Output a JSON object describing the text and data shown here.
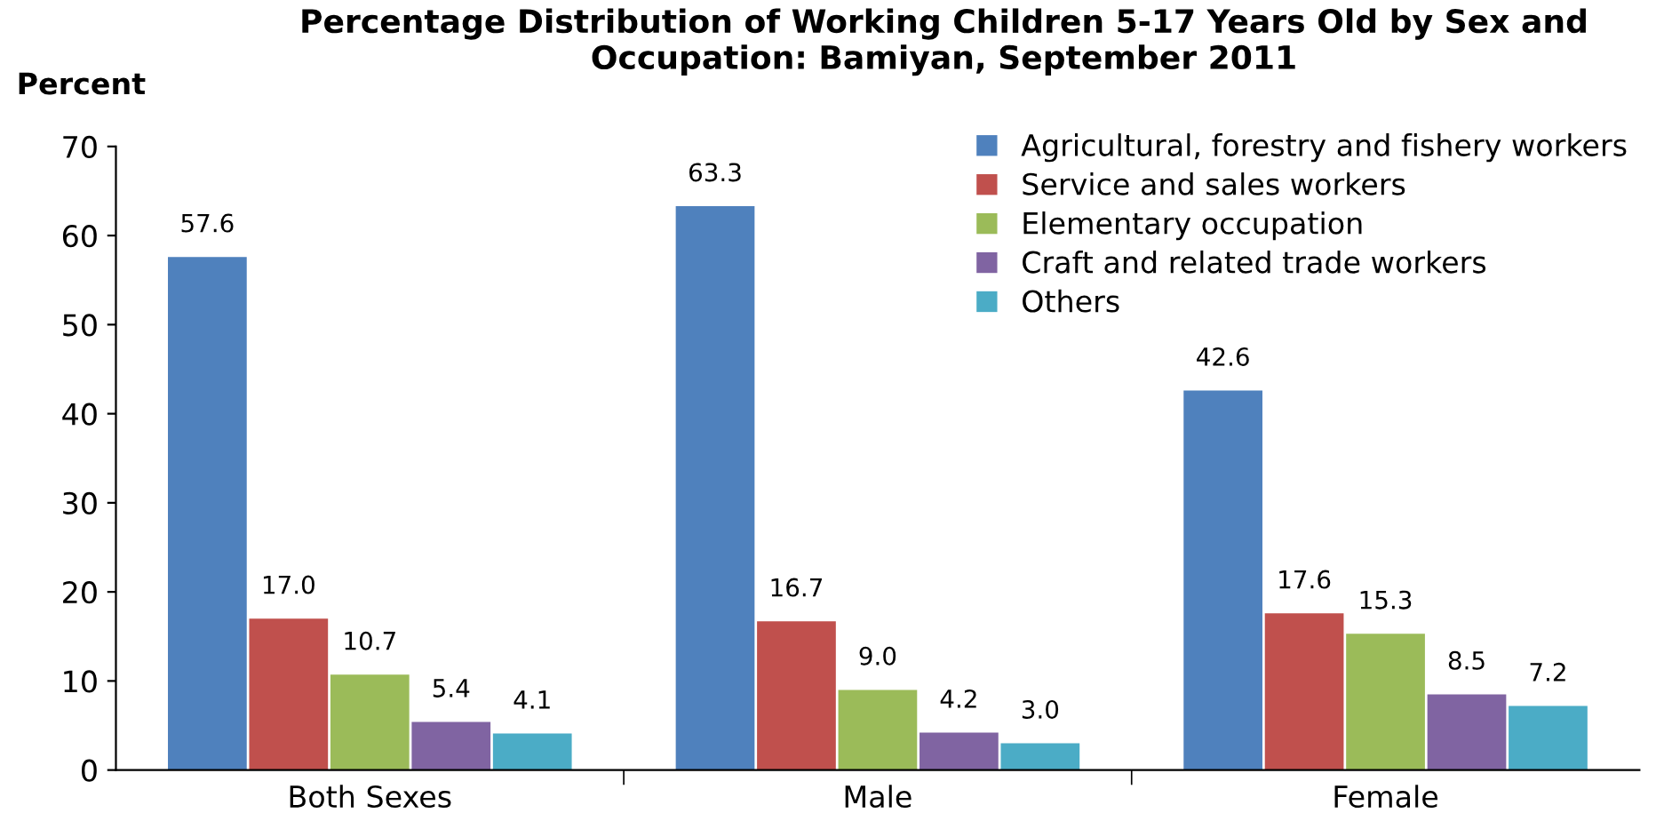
{
  "chart_data": {
    "type": "bar",
    "title": "Percentage Distribution of Working Children 5-17 Years Old by Sex and\nOccupation: Bamiyan, September 2011",
    "ylabel": "Percent",
    "categories": [
      "Both Sexes",
      "Male",
      "Female"
    ],
    "series": [
      {
        "name": "Agricultural, forestry and fishery workers",
        "color": "#4f81bd",
        "values": [
          57.6,
          63.3,
          42.6
        ],
        "value_labels": [
          "57.6",
          "63.3",
          "42.6"
        ]
      },
      {
        "name": "Service and sales workers",
        "color": "#c0504d",
        "values": [
          17.0,
          16.7,
          17.6
        ],
        "value_labels": [
          "17.0",
          "16.7",
          "17.6"
        ]
      },
      {
        "name": "Elementary occupation",
        "color": "#9bbb59",
        "values": [
          10.7,
          9.0,
          15.3
        ],
        "value_labels": [
          "10.7",
          "9.0",
          "15.3"
        ]
      },
      {
        "name": "Craft and related trade workers",
        "color": "#8064a2",
        "values": [
          5.4,
          4.2,
          8.5
        ],
        "value_labels": [
          "5.4",
          "4.2",
          "8.5"
        ]
      },
      {
        "name": "Others",
        "color": "#4bacc6",
        "values": [
          4.1,
          3.0,
          7.2
        ],
        "value_labels": [
          "4.1",
          "3.0",
          "7.2"
        ]
      }
    ],
    "ylim": [
      0,
      70
    ],
    "yticks": [
      0,
      10,
      20,
      30,
      40,
      50,
      60,
      70
    ],
    "grid": false,
    "legend": "top right"
  }
}
